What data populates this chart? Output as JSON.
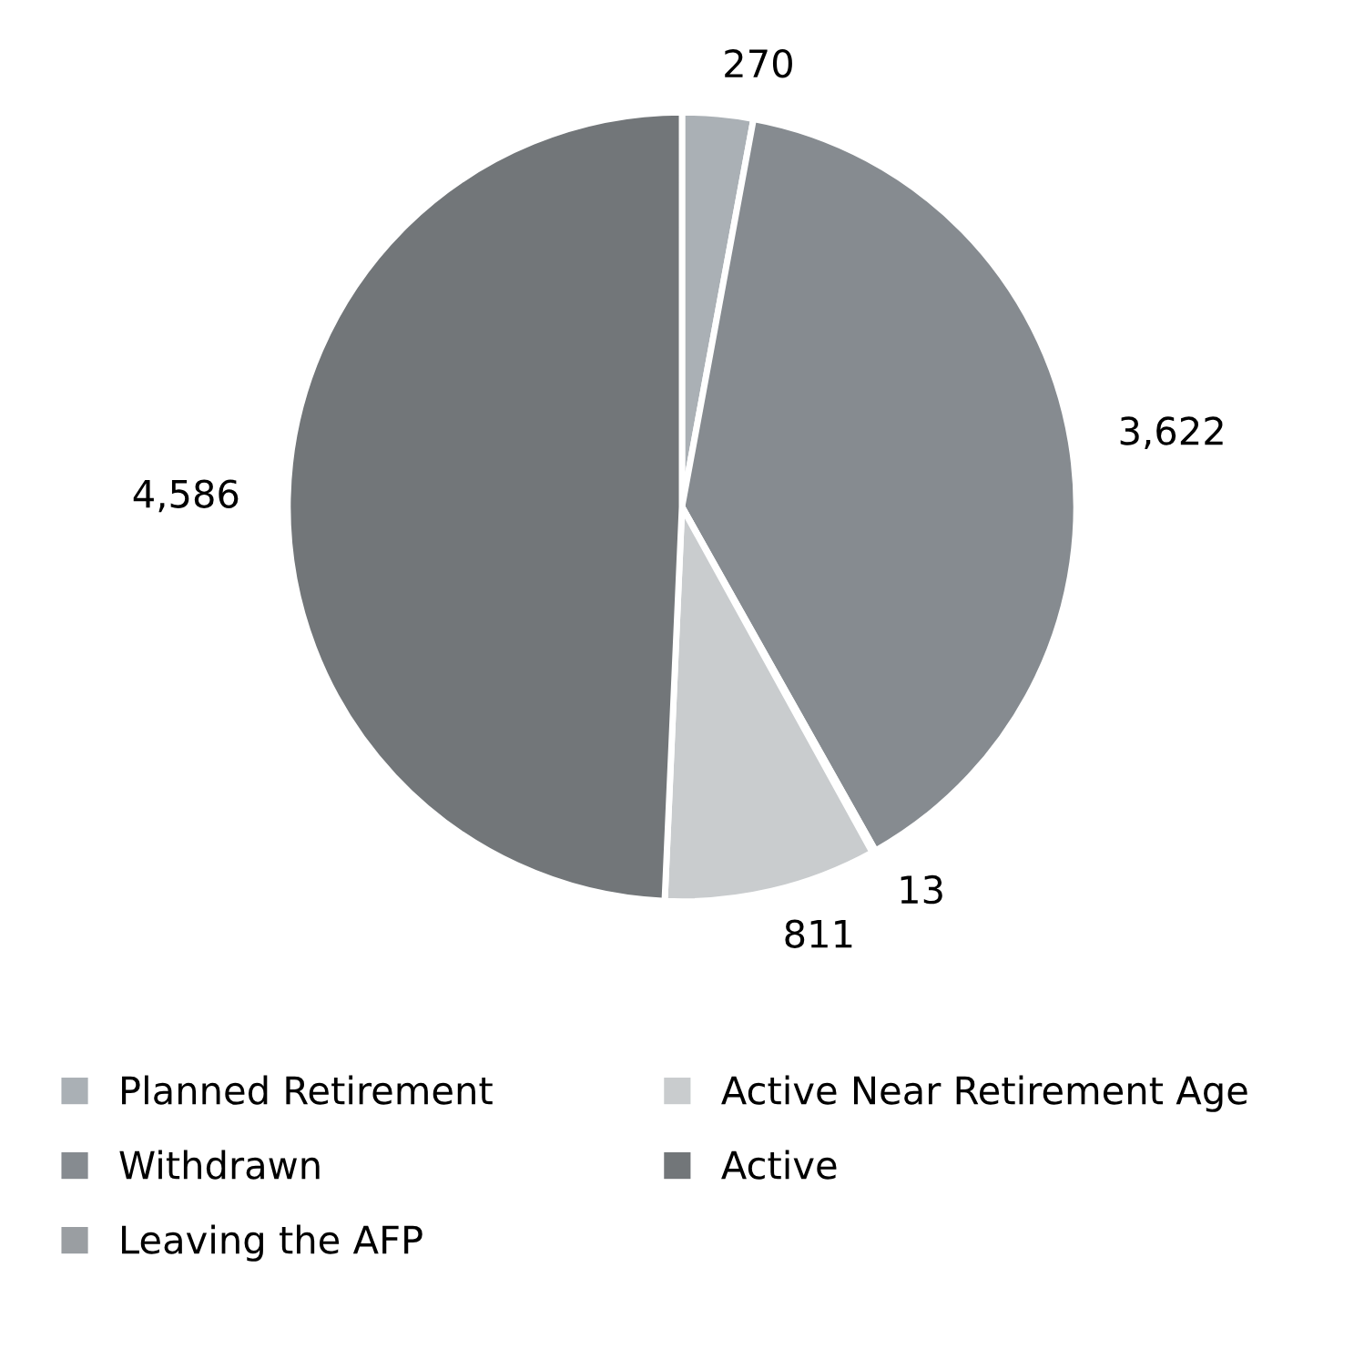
{
  "chart_data": {
    "type": "pie",
    "categories": [
      "Planned Retirement",
      "Withdrawn",
      "Leaving the AFP",
      "Active Near Retirement Age",
      "Active"
    ],
    "values": [
      270,
      3622,
      13,
      811,
      4586
    ],
    "colors": [
      "#aab0b5",
      "#868b90",
      "#9a9ea2",
      "#c9ccce",
      "#727679"
    ],
    "value_labels": [
      "270",
      "3,622",
      "13",
      "811",
      "4,586"
    ],
    "legend": "bottom"
  }
}
